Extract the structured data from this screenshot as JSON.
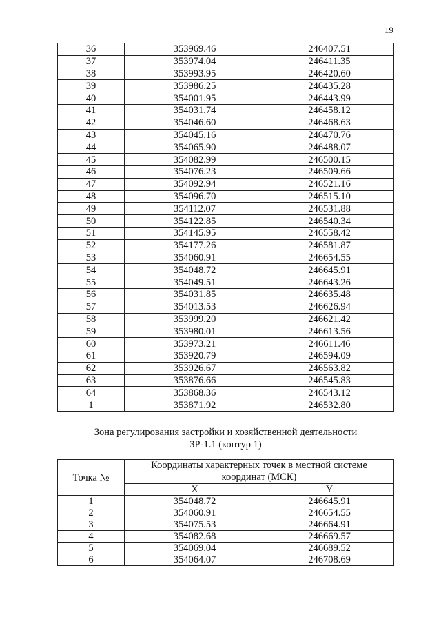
{
  "page_number": "19",
  "table1": {
    "rows": [
      [
        "36",
        "353969.46",
        "246407.51"
      ],
      [
        "37",
        "353974.04",
        "246411.35"
      ],
      [
        "38",
        "353993.95",
        "246420.60"
      ],
      [
        "39",
        "353986.25",
        "246435.28"
      ],
      [
        "40",
        "354001.95",
        "246443.99"
      ],
      [
        "41",
        "354031.74",
        "246458.12"
      ],
      [
        "42",
        "354046.60",
        "246468.63"
      ],
      [
        "43",
        "354045.16",
        "246470.76"
      ],
      [
        "44",
        "354065.90",
        "246488.07"
      ],
      [
        "45",
        "354082.99",
        "246500.15"
      ],
      [
        "46",
        "354076.23",
        "246509.66"
      ],
      [
        "47",
        "354092.94",
        "246521.16"
      ],
      [
        "48",
        "354096.70",
        "246515.10"
      ],
      [
        "49",
        "354112.07",
        "246531.88"
      ],
      [
        "50",
        "354122.85",
        "246540.34"
      ],
      [
        "51",
        "354145.95",
        "246558.42"
      ],
      [
        "52",
        "354177.26",
        "246581.87"
      ],
      [
        "53",
        "354060.91",
        "246654.55"
      ],
      [
        "54",
        "354048.72",
        "246645.91"
      ],
      [
        "55",
        "354049.51",
        "246643.26"
      ],
      [
        "56",
        "354031.85",
        "246635.48"
      ],
      [
        "57",
        "354013.53",
        "246626.94"
      ],
      [
        "58",
        "353999.20",
        "246621.42"
      ],
      [
        "59",
        "353980.01",
        "246613.56"
      ],
      [
        "60",
        "353973.21",
        "246611.46"
      ],
      [
        "61",
        "353920.79",
        "246594.09"
      ],
      [
        "62",
        "353926.67",
        "246563.82"
      ],
      [
        "63",
        "353876.66",
        "246545.83"
      ],
      [
        "64",
        "353868.36",
        "246543.12"
      ],
      [
        "1",
        "353871.92",
        "246532.80"
      ]
    ]
  },
  "section": {
    "title_line1": "Зона регулирования застройки и хозяйственной деятельности",
    "title_line2": "ЗР-1.1 (контур 1)"
  },
  "table2": {
    "header_point": "Точка №",
    "header_coords": "Координаты характерных точек в местной системе координат (МСК)",
    "header_x": "X",
    "header_y": "Y",
    "rows": [
      [
        "1",
        "354048.72",
        "246645.91"
      ],
      [
        "2",
        "354060.91",
        "246654.55"
      ],
      [
        "3",
        "354075.53",
        "246664.91"
      ],
      [
        "4",
        "354082.68",
        "246669.57"
      ],
      [
        "5",
        "354069.04",
        "246689.52"
      ],
      [
        "6",
        "354064.07",
        "246708.69"
      ]
    ]
  }
}
